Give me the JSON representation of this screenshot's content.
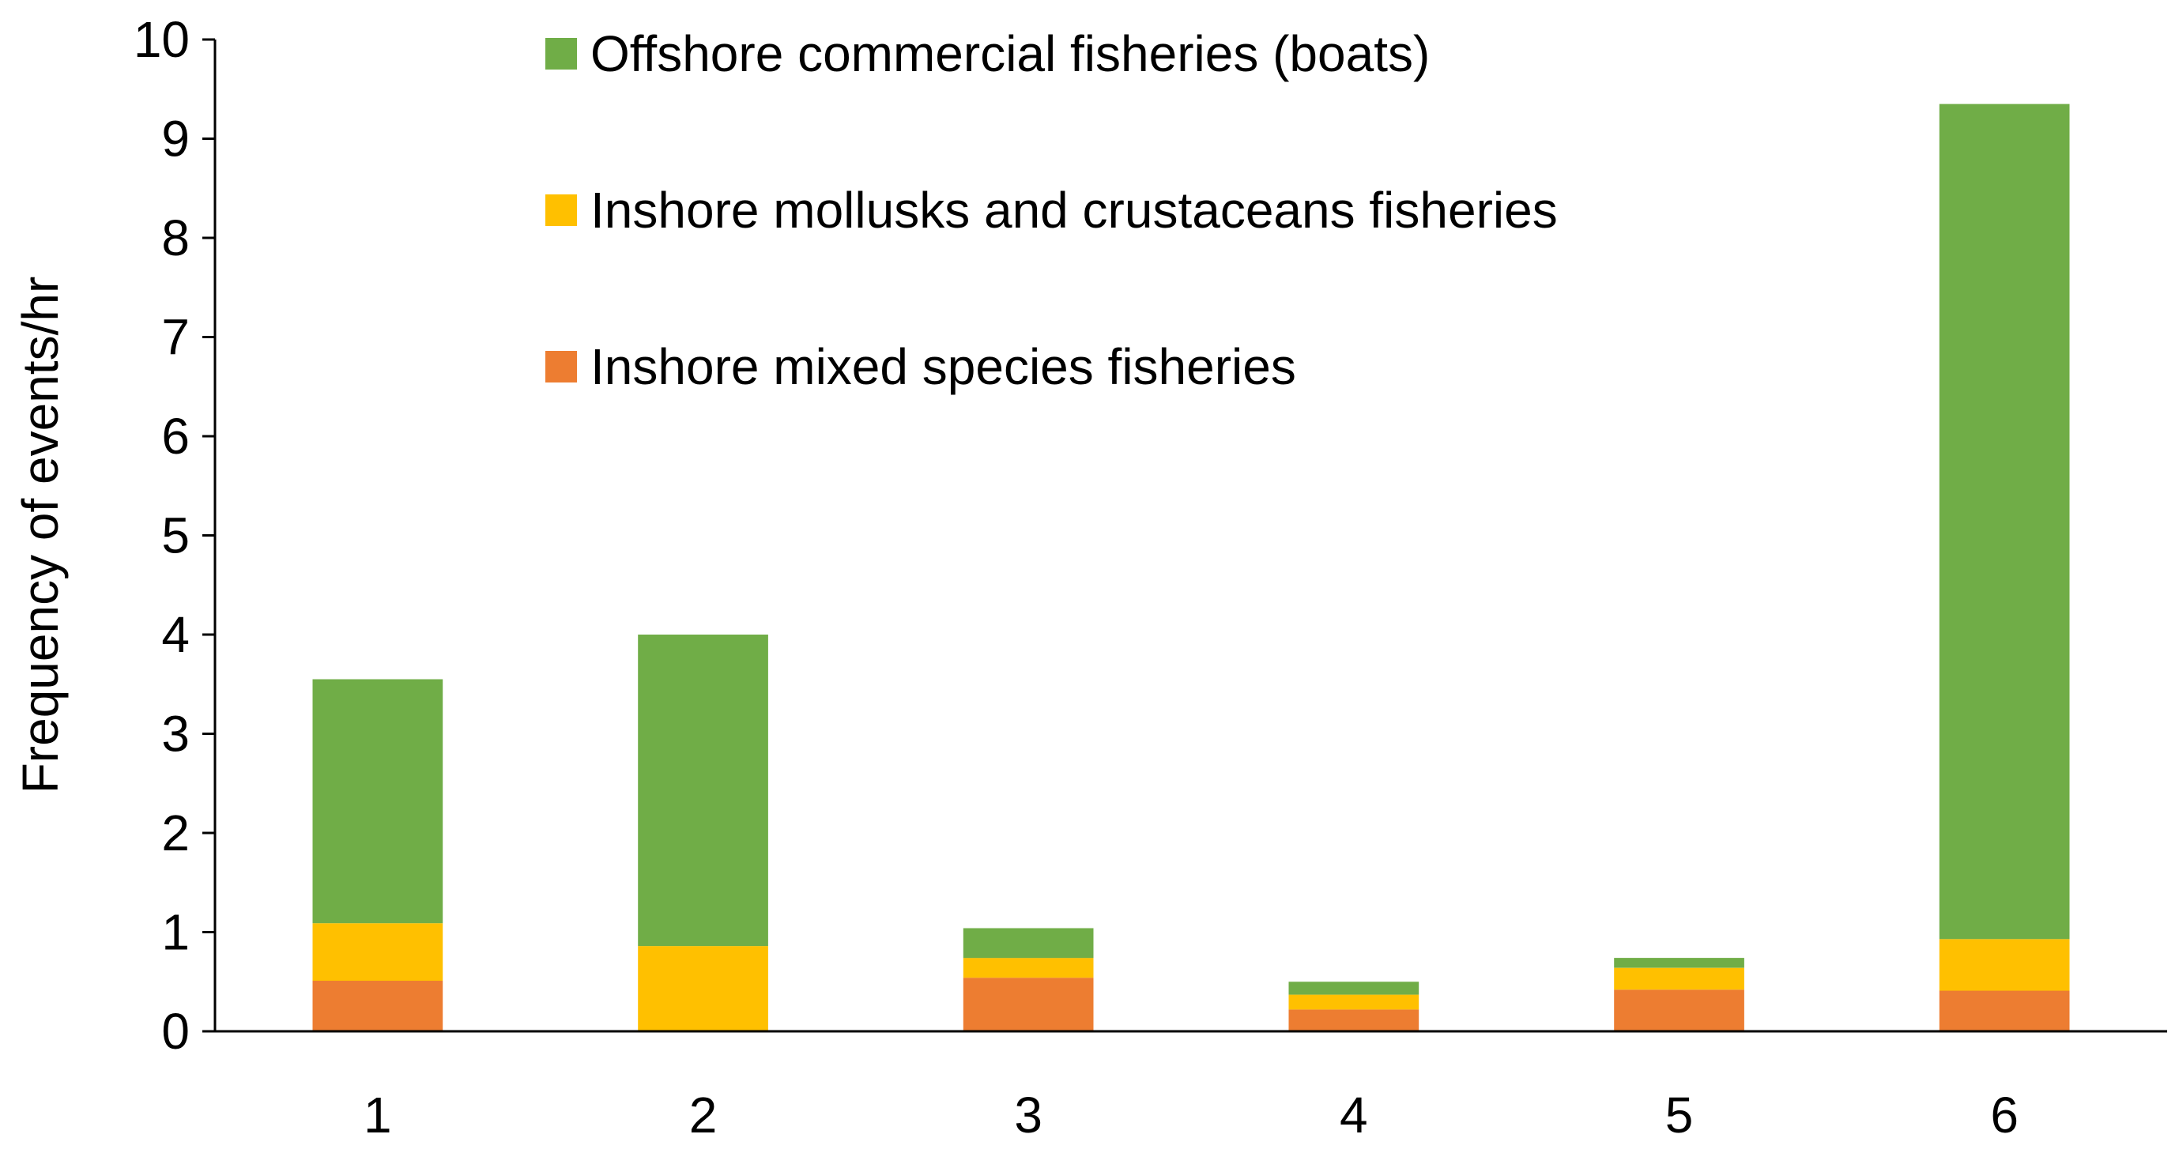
{
  "chart_data": {
    "type": "bar",
    "stacked": true,
    "categories": [
      "1",
      "2",
      "3",
      "4",
      "5",
      "6"
    ],
    "series": [
      {
        "name": "Inshore mixed species fisheries",
        "color": "#ED7D31",
        "values": [
          0.51,
          0.0,
          0.54,
          0.22,
          0.42,
          0.41
        ]
      },
      {
        "name": "Inshore mollusks and crustaceans fisheries",
        "color": "#FFC000",
        "values": [
          0.58,
          0.86,
          0.2,
          0.15,
          0.22,
          0.52
        ]
      },
      {
        "name": "Offshore commercial fisheries (boats)",
        "color": "#70AD47",
        "values": [
          2.46,
          3.14,
          0.3,
          0.13,
          0.1,
          8.42
        ]
      }
    ],
    "title": "",
    "xlabel": "",
    "ylabel": "Frequency of events/hr",
    "ylim": [
      0,
      10
    ],
    "yticks": [
      "0",
      "1",
      "2",
      "3",
      "4",
      "5",
      "6",
      "7",
      "8",
      "9",
      "10"
    ],
    "grid": false,
    "legend_position": "top-center",
    "legend_order": [
      2,
      1,
      0
    ]
  }
}
